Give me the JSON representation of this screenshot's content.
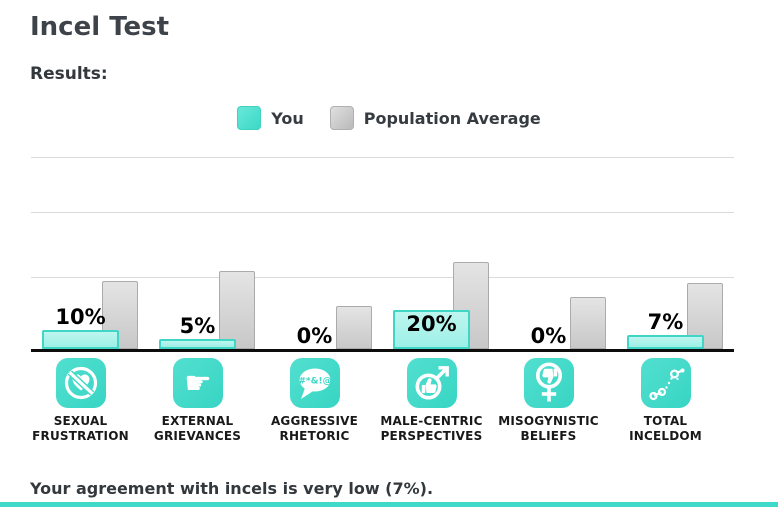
{
  "page": {
    "title": "Incel Test",
    "results_label": "Results:",
    "summary": "Your agreement with incels is very low (7%)."
  },
  "legend": {
    "you_label": "You",
    "pop_label": "Population Average"
  },
  "colors": {
    "accent_teal": "#3ed9c9",
    "you_bar_fill": "#a5f1e8",
    "you_bar_border": "#3fd6c5",
    "pop_bar_fill": "#d5d5d5",
    "pop_bar_border": "#ababab",
    "icon_teal": "#3ed8c8",
    "baseline": "#0d0d0d",
    "gridline": "#dadada",
    "text_dark": "#3e434a"
  },
  "chart_data": {
    "type": "bar",
    "title": "Incel Test Results",
    "categories": [
      "SEXUAL FRUSTRATION",
      "EXTERNAL GRIEVANCES",
      "AGGRESSIVE RHETORIC",
      "MALE-CENTRIC PERSPECTIVES",
      "MISOGYNISTIC BELIEFS",
      "TOTAL INCELDOM"
    ],
    "category_lines": [
      [
        "SEXUAL",
        "FRUSTRATION"
      ],
      [
        "EXTERNAL",
        "GRIEVANCES"
      ],
      [
        "AGGRESSIVE",
        "RHETORIC"
      ],
      [
        "MALE-CENTRIC",
        "PERSPECTIVES"
      ],
      [
        "MISOGYNISTIC",
        "BELIEFS"
      ],
      [
        "TOTAL",
        "INCELDOM"
      ]
    ],
    "series": [
      {
        "name": "You",
        "values": [
          10,
          5,
          0,
          20,
          0,
          7
        ],
        "labels": [
          "10%",
          "5%",
          "0%",
          "20%",
          "0%",
          "7%"
        ]
      },
      {
        "name": "Population Average",
        "values": [
          35,
          40,
          22,
          45,
          27,
          34
        ]
      }
    ],
    "ylim": [
      0,
      100
    ],
    "grid": true,
    "legend_position": "top",
    "icons": [
      "no-love-icon",
      "pointing-hand-icon",
      "profanity-speech-icon",
      "male-thumbs-up-icon",
      "female-thumbs-down-icon",
      "scatter-chart-icon"
    ],
    "speech_bubble_text": "#*&!@"
  }
}
